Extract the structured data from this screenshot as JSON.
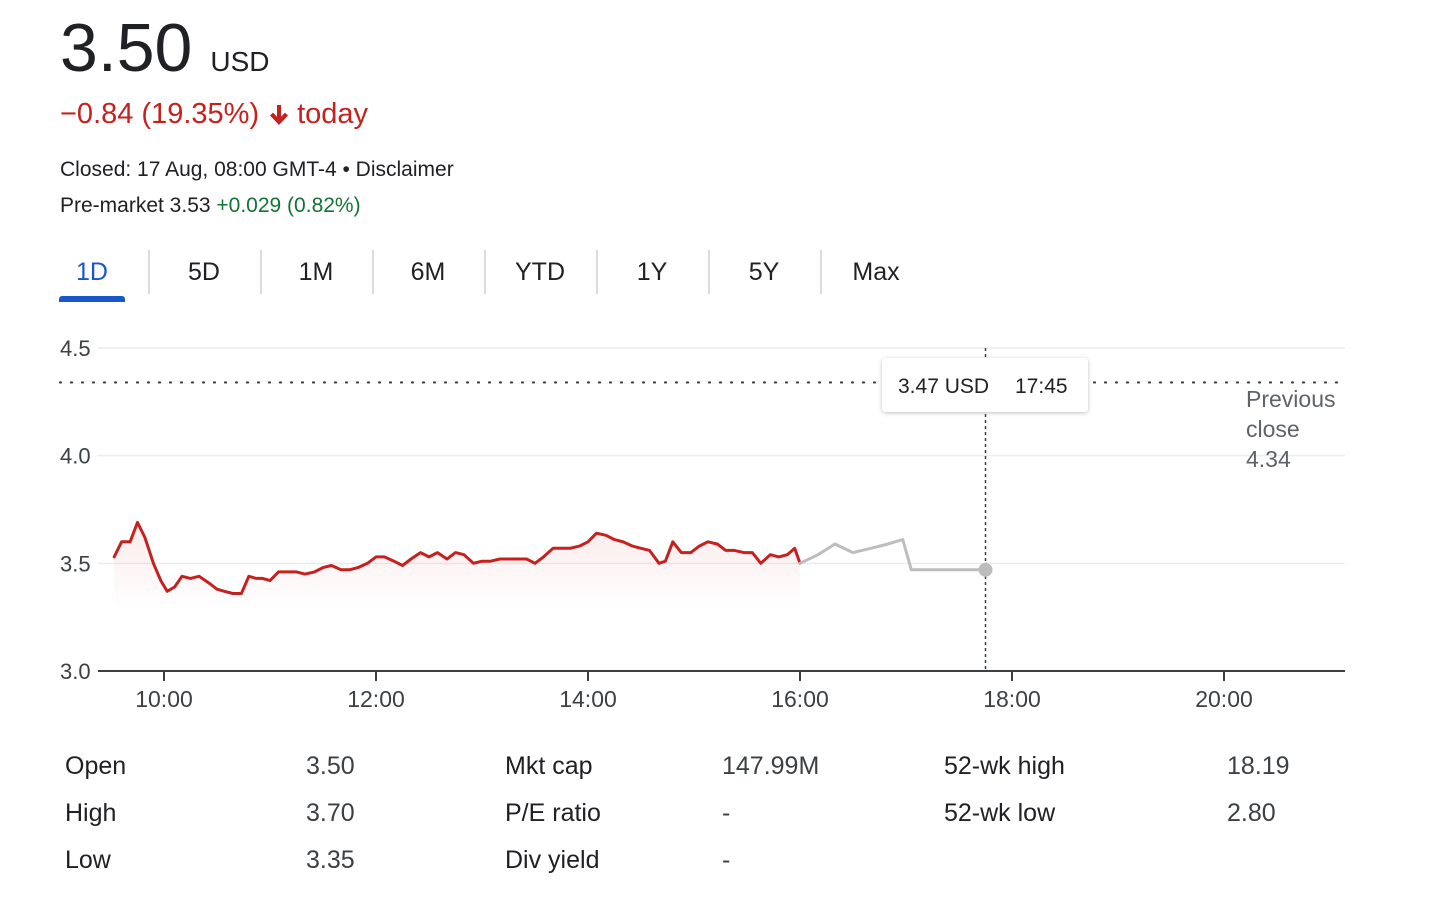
{
  "quote": {
    "price": "3.50",
    "currency": "USD",
    "change": "−0.84 (19.35%)",
    "change_period": "today",
    "closed": "Closed: 17 Aug, 08:00 GMT-4 • Disclaimer",
    "premarket_label": "Pre-market 3.53",
    "premarket_change": "+0.029 (0.82%)"
  },
  "colors": {
    "down": "#c5221f",
    "up": "#137333",
    "accent": "#1a57c9",
    "after_hours": "#bdbdbd"
  },
  "icons": {
    "change_direction": "arrow-down-icon"
  },
  "tabs": [
    {
      "label": "1D",
      "active": true
    },
    {
      "label": "5D"
    },
    {
      "label": "1M"
    },
    {
      "label": "6M"
    },
    {
      "label": "YTD"
    },
    {
      "label": "1Y"
    },
    {
      "label": "5Y"
    },
    {
      "label": "Max"
    }
  ],
  "tooltip": {
    "price": "3.47 USD",
    "time": "17:45"
  },
  "previous_close": {
    "line1": "Previous",
    "line2": "close",
    "value": "4.34"
  },
  "stats": [
    [
      {
        "label": "Open",
        "value": "3.50"
      },
      {
        "label": "High",
        "value": "3.70"
      },
      {
        "label": "Low",
        "value": "3.35"
      }
    ],
    [
      {
        "label": "Mkt cap",
        "value": "147.99M"
      },
      {
        "label": "P/E ratio",
        "value": "-"
      },
      {
        "label": "Div yield",
        "value": "-"
      }
    ],
    [
      {
        "label": "52-wk high",
        "value": "18.19"
      },
      {
        "label": "52-wk low",
        "value": "2.80"
      }
    ]
  ],
  "chart_data": {
    "type": "line",
    "x_unit": "hours",
    "xlim": [
      9.5,
      21.2
    ],
    "ylim": [
      3.0,
      4.5
    ],
    "yticks": [
      "3.0",
      "3.5",
      "4.0",
      "4.5"
    ],
    "xticks": [
      {
        "label": "10:00",
        "value": 10
      },
      {
        "label": "12:00",
        "value": 12
      },
      {
        "label": "14:00",
        "value": 14
      },
      {
        "label": "16:00",
        "value": 16
      },
      {
        "label": "18:00",
        "value": 18
      },
      {
        "label": "20:00",
        "value": 20
      }
    ],
    "previous_close": 4.34,
    "hover": {
      "x": 17.75,
      "y": 3.47
    },
    "series": [
      {
        "session": "regular",
        "color": "#c5221f",
        "x": [
          9.53,
          9.6,
          9.68,
          9.75,
          9.82,
          9.9,
          9.97,
          10.03,
          10.1,
          10.17,
          10.25,
          10.33,
          10.42,
          10.5,
          10.57,
          10.65,
          10.73,
          10.8,
          10.87,
          10.93,
          11.0,
          11.08,
          11.17,
          11.25,
          11.33,
          11.42,
          11.5,
          11.58,
          11.67,
          11.75,
          11.83,
          11.92,
          12.0,
          12.08,
          12.17,
          12.25,
          12.33,
          12.42,
          12.5,
          12.58,
          12.67,
          12.75,
          12.83,
          12.92,
          13.0,
          13.08,
          13.17,
          13.25,
          13.33,
          13.42,
          13.5,
          13.58,
          13.67,
          13.75,
          13.83,
          13.92,
          14.0,
          14.08,
          14.17,
          14.25,
          14.33,
          14.42,
          14.5,
          14.58,
          14.67,
          14.73,
          14.8,
          14.88,
          14.97,
          15.05,
          15.13,
          15.22,
          15.3,
          15.38,
          15.47,
          15.55,
          15.63,
          15.72,
          15.8,
          15.88,
          15.95,
          16.0
        ],
        "y": [
          3.53,
          3.6,
          3.6,
          3.69,
          3.62,
          3.5,
          3.42,
          3.37,
          3.39,
          3.44,
          3.43,
          3.44,
          3.41,
          3.38,
          3.37,
          3.36,
          3.36,
          3.44,
          3.43,
          3.43,
          3.42,
          3.46,
          3.46,
          3.46,
          3.45,
          3.46,
          3.48,
          3.49,
          3.47,
          3.47,
          3.48,
          3.5,
          3.53,
          3.53,
          3.51,
          3.49,
          3.52,
          3.55,
          3.53,
          3.55,
          3.52,
          3.55,
          3.54,
          3.5,
          3.51,
          3.51,
          3.52,
          3.52,
          3.52,
          3.52,
          3.5,
          3.53,
          3.57,
          3.57,
          3.57,
          3.58,
          3.6,
          3.64,
          3.63,
          3.61,
          3.6,
          3.58,
          3.57,
          3.56,
          3.5,
          3.51,
          3.6,
          3.55,
          3.55,
          3.58,
          3.6,
          3.59,
          3.56,
          3.56,
          3.55,
          3.55,
          3.5,
          3.54,
          3.53,
          3.54,
          3.57,
          3.5
        ]
      },
      {
        "session": "after-hours",
        "color": "#bdbdbd",
        "x": [
          16.0,
          16.17,
          16.33,
          16.5,
          16.67,
          16.83,
          16.97,
          17.05,
          17.3,
          17.55,
          17.75
        ],
        "y": [
          3.5,
          3.54,
          3.59,
          3.55,
          3.57,
          3.59,
          3.61,
          3.47,
          3.47,
          3.47,
          3.47
        ]
      }
    ]
  }
}
